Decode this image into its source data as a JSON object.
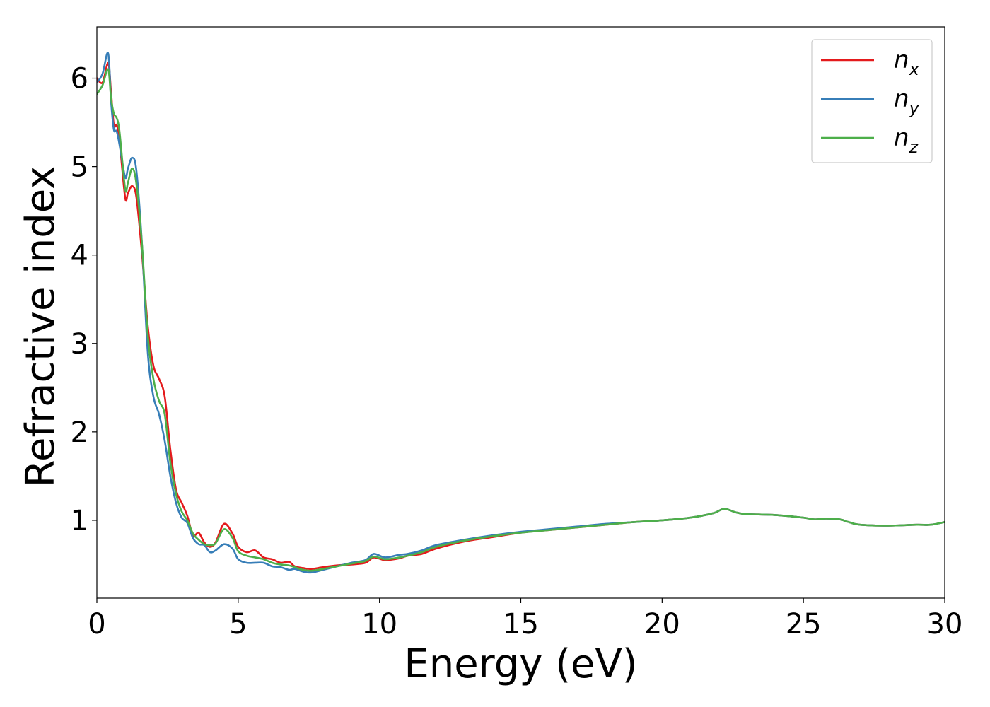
{
  "chart_data": {
    "type": "line",
    "xlabel": "Energy (eV)",
    "ylabel": "Refractive index",
    "xlim": [
      0,
      30
    ],
    "ylim": [
      0.12,
      6.58
    ],
    "xticks": [
      0,
      5,
      10,
      15,
      20,
      25,
      30
    ],
    "xtick_labels": [
      "0",
      "5",
      "10",
      "15",
      "20",
      "25",
      "30"
    ],
    "yticks": [
      1,
      2,
      3,
      4,
      5,
      6
    ],
    "ytick_labels": [
      "1",
      "2",
      "3",
      "4",
      "5",
      "6"
    ],
    "grid": false,
    "legend_position": "top-right",
    "series": [
      {
        "name": "n_x",
        "legend_base": "n",
        "legend_sub": "x",
        "color": "#e41a1c",
        "x": [
          0,
          0.2,
          0.4,
          0.5,
          0.6,
          0.7,
          0.8,
          1.0,
          1.1,
          1.25,
          1.4,
          1.6,
          1.8,
          2.0,
          2.2,
          2.4,
          2.6,
          2.8,
          3.0,
          3.2,
          3.4,
          3.6,
          3.8,
          4.0,
          4.2,
          4.5,
          4.8,
          5.0,
          5.3,
          5.6,
          5.9,
          6.2,
          6.5,
          6.8,
          7.0,
          7.3,
          7.6,
          8.0,
          8.5,
          9.0,
          9.5,
          9.8,
          10.2,
          10.7,
          11.0,
          11.5,
          12.0,
          13.0,
          14.0,
          15.0,
          16.0,
          17.0,
          18.0,
          19.0,
          20.0,
          21.0,
          21.8,
          22.2,
          22.6,
          23.0,
          24.0,
          25.0,
          25.4,
          25.8,
          26.3,
          26.6,
          27.0,
          28.0,
          29.0,
          29.5,
          30.0
        ],
        "y": [
          6.0,
          5.95,
          6.17,
          5.85,
          5.47,
          5.47,
          5.3,
          4.65,
          4.7,
          4.78,
          4.65,
          4.0,
          3.2,
          2.75,
          2.6,
          2.4,
          1.8,
          1.35,
          1.2,
          1.05,
          0.83,
          0.86,
          0.75,
          0.7,
          0.75,
          0.96,
          0.85,
          0.7,
          0.64,
          0.66,
          0.58,
          0.56,
          0.52,
          0.53,
          0.48,
          0.46,
          0.45,
          0.47,
          0.49,
          0.5,
          0.52,
          0.58,
          0.55,
          0.57,
          0.6,
          0.62,
          0.68,
          0.76,
          0.81,
          0.86,
          0.89,
          0.92,
          0.95,
          0.98,
          1.0,
          1.03,
          1.08,
          1.13,
          1.09,
          1.07,
          1.06,
          1.03,
          1.01,
          1.02,
          1.01,
          0.98,
          0.95,
          0.94,
          0.95,
          0.95,
          0.98
        ]
      },
      {
        "name": "n_y",
        "legend_base": "n",
        "legend_sub": "y",
        "color": "#377eb8",
        "x": [
          0,
          0.2,
          0.4,
          0.5,
          0.6,
          0.7,
          0.8,
          1.0,
          1.1,
          1.25,
          1.4,
          1.6,
          1.8,
          2.0,
          2.2,
          2.4,
          2.6,
          2.8,
          3.0,
          3.2,
          3.4,
          3.6,
          3.8,
          4.0,
          4.2,
          4.5,
          4.8,
          5.0,
          5.3,
          5.6,
          5.9,
          6.2,
          6.5,
          6.8,
          7.0,
          7.3,
          7.6,
          8.0,
          8.5,
          9.0,
          9.5,
          9.8,
          10.2,
          10.7,
          11.0,
          11.5,
          12.0,
          13.0,
          14.0,
          15.0,
          16.0,
          17.0,
          18.0,
          19.0,
          20.0,
          21.0,
          21.8,
          22.2,
          22.6,
          23.0,
          24.0,
          25.0,
          25.4,
          25.8,
          26.3,
          26.6,
          27.0,
          28.0,
          29.0,
          29.5,
          30.0
        ],
        "y": [
          5.95,
          6.05,
          6.28,
          5.75,
          5.42,
          5.4,
          5.25,
          4.88,
          4.98,
          5.1,
          4.95,
          4.1,
          2.9,
          2.4,
          2.2,
          1.9,
          1.5,
          1.2,
          1.03,
          0.97,
          0.8,
          0.73,
          0.72,
          0.64,
          0.66,
          0.73,
          0.68,
          0.56,
          0.52,
          0.52,
          0.52,
          0.48,
          0.47,
          0.44,
          0.45,
          0.42,
          0.41,
          0.44,
          0.48,
          0.52,
          0.55,
          0.62,
          0.58,
          0.61,
          0.62,
          0.66,
          0.72,
          0.78,
          0.83,
          0.87,
          0.9,
          0.93,
          0.96,
          0.98,
          1.0,
          1.03,
          1.08,
          1.13,
          1.09,
          1.07,
          1.06,
          1.03,
          1.01,
          1.02,
          1.01,
          0.98,
          0.95,
          0.94,
          0.95,
          0.95,
          0.98
        ]
      },
      {
        "name": "n_z",
        "legend_base": "n",
        "legend_sub": "z",
        "color": "#4daf4a",
        "x": [
          0,
          0.2,
          0.4,
          0.5,
          0.6,
          0.7,
          0.8,
          1.0,
          1.1,
          1.25,
          1.4,
          1.6,
          1.8,
          2.0,
          2.2,
          2.4,
          2.6,
          2.8,
          3.0,
          3.2,
          3.4,
          3.6,
          3.8,
          4.0,
          4.2,
          4.5,
          4.8,
          5.0,
          5.3,
          5.6,
          5.9,
          6.2,
          6.5,
          6.8,
          7.0,
          7.3,
          7.6,
          8.0,
          8.5,
          9.0,
          9.5,
          9.8,
          10.2,
          10.7,
          11.0,
          11.5,
          12.0,
          13.0,
          14.0,
          15.0,
          16.0,
          17.0,
          18.0,
          19.0,
          20.0,
          21.0,
          21.8,
          22.2,
          22.6,
          23.0,
          24.0,
          25.0,
          25.4,
          25.8,
          26.3,
          26.6,
          27.0,
          28.0,
          29.0,
          29.5,
          30.0
        ],
        "y": [
          5.82,
          5.92,
          6.1,
          5.78,
          5.6,
          5.55,
          5.4,
          4.75,
          4.82,
          4.98,
          4.8,
          4.1,
          3.1,
          2.6,
          2.35,
          2.2,
          1.65,
          1.3,
          1.1,
          1.0,
          0.85,
          0.78,
          0.73,
          0.72,
          0.74,
          0.9,
          0.8,
          0.65,
          0.6,
          0.58,
          0.56,
          0.52,
          0.5,
          0.49,
          0.47,
          0.44,
          0.43,
          0.45,
          0.48,
          0.51,
          0.54,
          0.59,
          0.56,
          0.58,
          0.6,
          0.64,
          0.7,
          0.77,
          0.82,
          0.86,
          0.89,
          0.92,
          0.95,
          0.98,
          1.0,
          1.03,
          1.08,
          1.13,
          1.09,
          1.07,
          1.06,
          1.03,
          1.01,
          1.02,
          1.01,
          0.98,
          0.95,
          0.94,
          0.95,
          0.95,
          0.98
        ]
      }
    ]
  }
}
